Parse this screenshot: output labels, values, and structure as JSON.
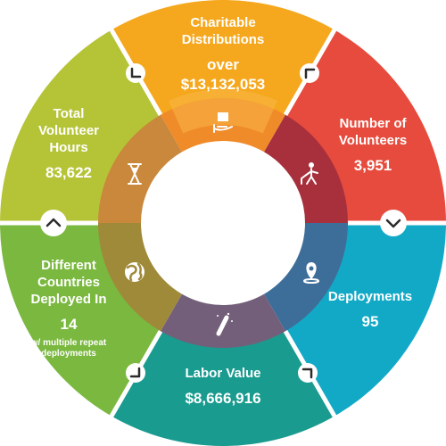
{
  "segments": [
    {
      "key": "charitable",
      "title_lines": [
        "Charitable",
        "Distributions"
      ],
      "value_lines": [
        "over",
        "$13,132,053"
      ],
      "note_lines": [],
      "color": "#f5a81e",
      "inner_color": "#f08b2a",
      "icon": "gift-hand-icon",
      "arrow": "chevron-down-left"
    },
    {
      "key": "volunteers",
      "title_lines": [
        "Number of",
        "Volunteers"
      ],
      "value_lines": [
        "3,951"
      ],
      "note_lines": [],
      "color": "#e64b3d",
      "inner_color": "#a8303d",
      "icon": "volunteer-person-icon",
      "arrow": "chevron-down-right"
    },
    {
      "key": "deployments",
      "title_lines": [
        "Deployments"
      ],
      "value_lines": [
        "95"
      ],
      "note_lines": [],
      "color": "#12a9c7",
      "inner_color": "#3d6e99",
      "icon": "location-pin-icon",
      "arrow": "chevron-down"
    },
    {
      "key": "labor",
      "title_lines": [
        "Labor Value"
      ],
      "value_lines": [
        "$8,666,916"
      ],
      "note_lines": [],
      "color": "#1a9b8f",
      "inner_color": "#735f79",
      "icon": "wrench-sparkle-icon",
      "arrow": "chevron-down-left"
    },
    {
      "key": "countries",
      "title_lines": [
        "Different",
        "Countries",
        "Deployed In"
      ],
      "value_lines": [
        "14"
      ],
      "note_lines": [
        "w/ multiple repeat",
        "deployments"
      ],
      "color": "#7ab83f",
      "inner_color": "#9f8a3a",
      "icon": "globe-icon",
      "arrow": "chevron-up-left"
    },
    {
      "key": "hours",
      "title_lines": [
        "Total",
        "Volunteer",
        "Hours"
      ],
      "value_lines": [
        "83,622"
      ],
      "note_lines": [],
      "color": "#b5c436",
      "inner_color": "#c9883b",
      "icon": "hourglass-icon",
      "arrow": "chevron-up"
    }
  ]
}
